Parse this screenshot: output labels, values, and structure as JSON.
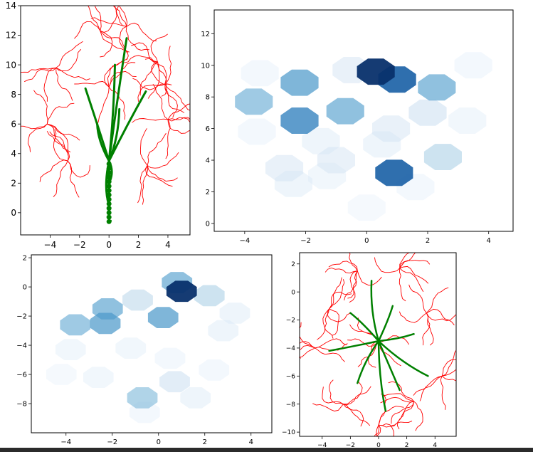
{
  "chart_data": [
    {
      "type": "scatter",
      "panel": "tree-side-view",
      "xlim": [
        -6,
        5.5
      ],
      "ylim": [
        -1.5,
        14
      ],
      "x_ticks": [
        -4,
        -2,
        0,
        2,
        4
      ],
      "y_ticks": [
        0,
        2,
        4,
        6,
        8,
        10,
        12,
        14
      ],
      "grid": false,
      "series": [
        {
          "color": "#ff0000",
          "description_points": [
            [
              0,
              8.5
            ],
            [
              -4.2,
              6
            ],
            [
              4,
              6.3
            ],
            [
              -3.6,
              9.8
            ],
            [
              3.3,
              10.2
            ],
            [
              -0.6,
              12.3
            ],
            [
              1.2,
              12.6
            ],
            [
              -2.8,
              3.5
            ],
            [
              2.6,
              3.2
            ],
            [
              3.8,
              8.7
            ]
          ]
        },
        {
          "color": "#008000",
          "description_points": [
            [
              0,
              -0.6
            ],
            [
              0,
              0.5
            ],
            [
              0,
              2
            ],
            [
              0,
              3.5
            ],
            [
              -0.8,
              6
            ],
            [
              0.7,
              7
            ],
            [
              0.4,
              10
            ],
            [
              1.2,
              11.8
            ],
            [
              -1.6,
              8.4
            ],
            [
              2.5,
              8.2
            ]
          ]
        }
      ]
    },
    {
      "type": "heatmap",
      "panel": "hexbin-xy",
      "colormap": "Blues",
      "xlim": [
        -5,
        4.8
      ],
      "ylim": [
        -0.5,
        13.5
      ],
      "x_ticks": [
        -4,
        -2,
        0,
        2,
        4
      ],
      "y_ticks": [
        0,
        2,
        4,
        6,
        8,
        10,
        12
      ],
      "grid": false,
      "hexes": [
        {
          "x": 0.3,
          "y": 9.6,
          "v": 1.0
        },
        {
          "x": 1.0,
          "y": 9.1,
          "v": 0.85
        },
        {
          "x": 2.3,
          "y": 8.6,
          "v": 0.55
        },
        {
          "x": -2.2,
          "y": 8.9,
          "v": 0.6
        },
        {
          "x": -3.7,
          "y": 7.7,
          "v": 0.5
        },
        {
          "x": -0.7,
          "y": 7.1,
          "v": 0.55
        },
        {
          "x": -2.2,
          "y": 6.5,
          "v": 0.7
        },
        {
          "x": 0.9,
          "y": 3.2,
          "v": 0.85
        },
        {
          "x": 2.5,
          "y": 4.2,
          "v": 0.35
        },
        {
          "x": -1.0,
          "y": 4.0,
          "v": 0.2
        },
        {
          "x": -2.7,
          "y": 3.5,
          "v": 0.2
        },
        {
          "x": 0.8,
          "y": 6.0,
          "v": 0.2
        },
        {
          "x": -0.5,
          "y": 9.7,
          "v": 0.2
        },
        {
          "x": 2.0,
          "y": 7.0,
          "v": 0.25
        },
        {
          "x": -1.5,
          "y": 5.2,
          "v": 0.15
        },
        {
          "x": 0.5,
          "y": 5.0,
          "v": 0.15
        },
        {
          "x": -2.4,
          "y": 2.5,
          "v": 0.15
        },
        {
          "x": 3.5,
          "y": 10.0,
          "v": 0.1
        },
        {
          "x": -3.5,
          "y": 9.5,
          "v": 0.1
        },
        {
          "x": -3.6,
          "y": 5.8,
          "v": 0.1
        },
        {
          "x": 0.0,
          "y": 1.0,
          "v": 0.08
        },
        {
          "x": 3.3,
          "y": 6.5,
          "v": 0.12
        },
        {
          "x": -1.3,
          "y": 3.0,
          "v": 0.12
        },
        {
          "x": 1.6,
          "y": 2.3,
          "v": 0.1
        }
      ]
    },
    {
      "type": "heatmap",
      "panel": "hexbin-xz",
      "colormap": "Blues",
      "xlim": [
        -5.5,
        4.9
      ],
      "ylim": [
        -10,
        2.2
      ],
      "x_ticks": [
        -4,
        -2,
        0,
        2,
        4
      ],
      "y_ticks": [
        -8,
        -6,
        -4,
        -2,
        0,
        2
      ],
      "grid": false,
      "hexes": [
        {
          "x": 1.0,
          "y": -0.3,
          "v": 1.0
        },
        {
          "x": 0.8,
          "y": 0.3,
          "v": 0.55
        },
        {
          "x": 2.2,
          "y": -0.6,
          "v": 0.35
        },
        {
          "x": -0.9,
          "y": -0.9,
          "v": 0.3
        },
        {
          "x": -2.2,
          "y": -1.5,
          "v": 0.55
        },
        {
          "x": -2.3,
          "y": -2.5,
          "v": 0.6
        },
        {
          "x": -3.6,
          "y": -2.6,
          "v": 0.5
        },
        {
          "x": 0.2,
          "y": -2.1,
          "v": 0.6
        },
        {
          "x": -0.7,
          "y": -7.6,
          "v": 0.45
        },
        {
          "x": 0.7,
          "y": -6.5,
          "v": 0.25
        },
        {
          "x": 1.6,
          "y": -7.6,
          "v": 0.15
        },
        {
          "x": 2.8,
          "y": -3.0,
          "v": 0.15
        },
        {
          "x": -1.2,
          "y": -4.2,
          "v": 0.12
        },
        {
          "x": -3.8,
          "y": -4.3,
          "v": 0.12
        },
        {
          "x": 0.5,
          "y": -4.9,
          "v": 0.1
        },
        {
          "x": -2.6,
          "y": -6.2,
          "v": 0.12
        },
        {
          "x": 2.4,
          "y": -5.7,
          "v": 0.1
        },
        {
          "x": -4.2,
          "y": -6.0,
          "v": 0.08
        },
        {
          "x": 3.3,
          "y": -1.8,
          "v": 0.15
        },
        {
          "x": -0.6,
          "y": -8.6,
          "v": 0.1
        }
      ]
    },
    {
      "type": "scatter",
      "panel": "tree-top-view",
      "xlim": [
        -5.6,
        5.5
      ],
      "ylim": [
        -10.3,
        2.8
      ],
      "x_ticks": [
        -4,
        -2,
        0,
        2,
        4
      ],
      "y_ticks": [
        -10,
        -8,
        -6,
        -4,
        -2,
        0,
        2
      ],
      "grid": false,
      "series": [
        {
          "color": "#ff0000",
          "description_points": [
            [
              0,
              -3.5
            ],
            [
              -4.5,
              -4
            ],
            [
              4.5,
              -6
            ],
            [
              -1.5,
              1.5
            ],
            [
              1.5,
              1.7
            ],
            [
              -2.5,
              -8
            ],
            [
              2.5,
              -7.8
            ],
            [
              -3.5,
              -1.2
            ],
            [
              3.4,
              -1.5
            ],
            [
              0,
              -9.5
            ]
          ]
        },
        {
          "color": "#008000",
          "description_points": [
            [
              0,
              -3.5
            ],
            [
              -3.5,
              -4.2
            ],
            [
              3.5,
              -6
            ],
            [
              -0.5,
              0.8
            ],
            [
              1,
              -1
            ],
            [
              -1.5,
              -6.5
            ],
            [
              1.5,
              -7
            ],
            [
              2.5,
              -3
            ],
            [
              -2,
              -1.5
            ],
            [
              0.5,
              -8.5
            ]
          ]
        }
      ]
    }
  ]
}
